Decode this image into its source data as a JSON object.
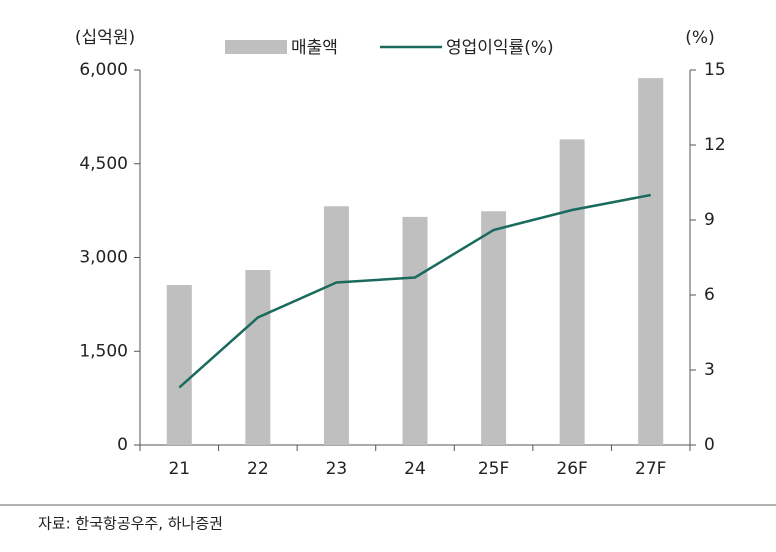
{
  "chart_data": {
    "type": "combo",
    "y_unit": "(십억원)",
    "y2_unit": "(%)",
    "categories": [
      "21",
      "22",
      "23",
      "24",
      "25F",
      "26F",
      "27F"
    ],
    "series": [
      {
        "name": "매출액",
        "type": "bar",
        "color": "#bfbfbf",
        "values": [
          2560,
          2800,
          3820,
          3650,
          3740,
          4890,
          5870
        ]
      },
      {
        "name": "영업이익률(%)",
        "type": "line",
        "axis": "y2",
        "color": "#1a6b5e",
        "values": [
          2.3,
          5.1,
          6.5,
          6.7,
          8.6,
          9.4,
          10.0
        ]
      }
    ],
    "ylim": [
      0,
      6000
    ],
    "yticks": [
      0,
      {
        "value": 1500,
        "label": "1,500"
      },
      {
        "value": 3000,
        "label": "3,000"
      },
      {
        "value": 4500,
        "label": "4,500"
      },
      {
        "value": 6000,
        "label": "6,000"
      }
    ],
    "y2lim": [
      0,
      15
    ],
    "y2ticks": [
      0,
      3,
      6,
      9,
      12,
      15
    ],
    "source": "자료: 한국항공우주, 하나증권"
  }
}
